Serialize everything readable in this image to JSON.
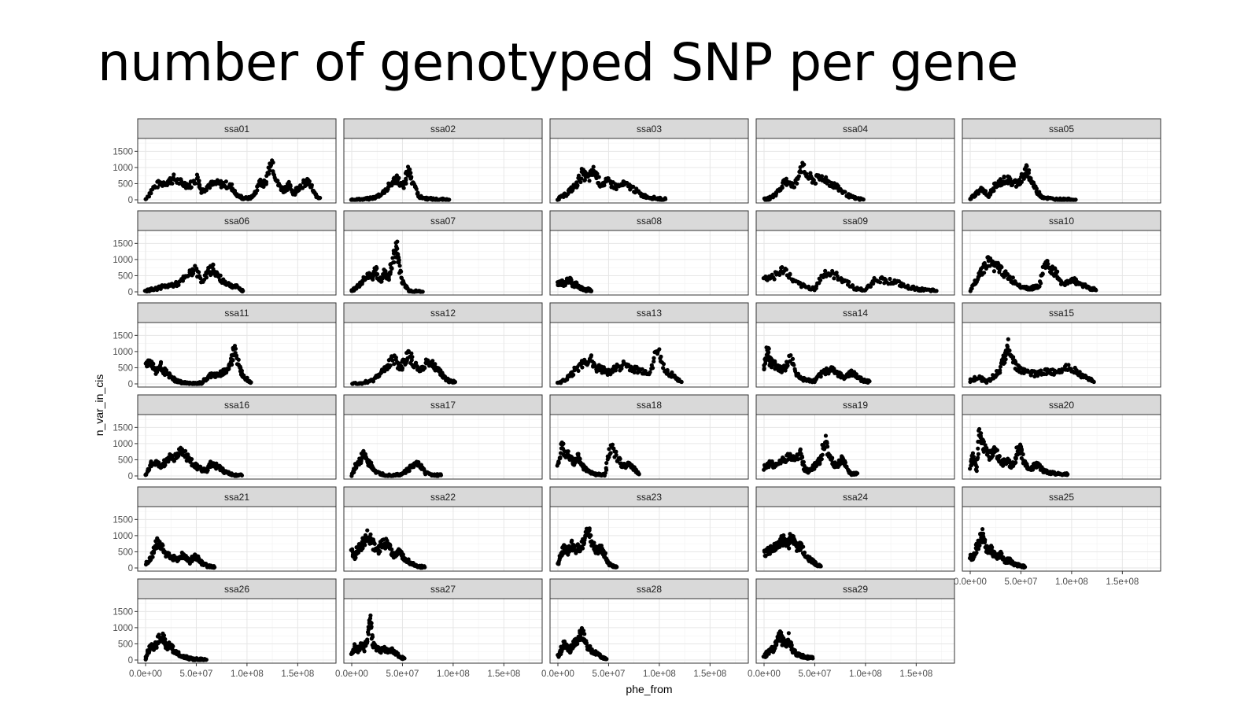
{
  "slide": {
    "title": "number of genotyped SNP per gene"
  },
  "chart_data": {
    "type": "scatter",
    "facet_layout": {
      "columns": 5,
      "rows": 6
    },
    "xlabel": "phe_from",
    "ylabel": "n_var_in_cis",
    "xlim": [
      0,
      180000000
    ],
    "ylim": [
      0,
      1800
    ],
    "x_ticks": [
      0,
      50000000,
      100000000,
      150000000
    ],
    "x_tick_labels": [
      "0.0e+00",
      "5.0e+07",
      "1.0e+08",
      "1.5e+08"
    ],
    "y_ticks": [
      0,
      500,
      1000,
      1500
    ],
    "y_tick_labels": [
      "0",
      "500",
      "1000",
      "1500"
    ],
    "grid": true,
    "point_color": "#000000",
    "strip_fill": "#d9d9d9",
    "facets": [
      {
        "name": "ssa01",
        "x": [
          0,
          10,
          20,
          28,
          36,
          44,
          52,
          55,
          62,
          70,
          78,
          85,
          90,
          96,
          103,
          108,
          113,
          118,
          124,
          130,
          136,
          141,
          146,
          150,
          156,
          161,
          167,
          172
        ],
        "y": [
          20,
          450,
          550,
          650,
          500,
          450,
          700,
          250,
          450,
          500,
          480,
          400,
          150,
          50,
          50,
          200,
          600,
          450,
          1300,
          500,
          300,
          450,
          200,
          350,
          500,
          550,
          150,
          60
        ]
      },
      {
        "name": "ssa02",
        "x": [
          0,
          8,
          16,
          24,
          32,
          38,
          44,
          50,
          52,
          56,
          60,
          66,
          72,
          80,
          88,
          96
        ],
        "y": [
          5,
          10,
          30,
          80,
          250,
          450,
          700,
          400,
          500,
          950,
          600,
          100,
          50,
          20,
          10,
          5
        ]
      },
      {
        "name": "ssa03",
        "x": [
          0,
          6,
          12,
          18,
          24,
          30,
          36,
          42,
          50,
          58,
          66,
          74,
          82,
          90,
          98,
          106
        ],
        "y": [
          30,
          120,
          300,
          450,
          800,
          650,
          900,
          500,
          550,
          400,
          480,
          350,
          150,
          80,
          40,
          20
        ]
      },
      {
        "name": "ssa04",
        "x": [
          0,
          6,
          12,
          18,
          24,
          30,
          36,
          44,
          50,
          58,
          66,
          74,
          82,
          90,
          98
        ],
        "y": [
          10,
          50,
          200,
          450,
          600,
          400,
          1050,
          700,
          600,
          700,
          500,
          350,
          150,
          40,
          10
        ]
      },
      {
        "name": "ssa05",
        "x": [
          0,
          6,
          12,
          18,
          24,
          30,
          36,
          42,
          48,
          52,
          56,
          60,
          66,
          72,
          80,
          88,
          96,
          104
        ],
        "y": [
          20,
          200,
          350,
          100,
          400,
          550,
          650,
          500,
          550,
          700,
          950,
          600,
          250,
          80,
          30,
          15,
          10,
          5
        ]
      },
      {
        "name": "ssa06",
        "x": [
          0,
          8,
          16,
          24,
          32,
          40,
          48,
          56,
          62,
          66,
          72,
          78,
          84,
          90,
          96
        ],
        "y": [
          20,
          80,
          150,
          200,
          250,
          450,
          700,
          350,
          600,
          750,
          450,
          300,
          200,
          150,
          30
        ]
      },
      {
        "name": "ssa07",
        "x": [
          0,
          5,
          10,
          15,
          20,
          24,
          28,
          32,
          36,
          40,
          44,
          46,
          50,
          56,
          62,
          70
        ],
        "y": [
          30,
          150,
          300,
          550,
          400,
          700,
          300,
          600,
          400,
          900,
          1400,
          1000,
          300,
          50,
          20,
          5
        ]
      },
      {
        "name": "ssa08",
        "x": [
          0,
          3,
          6,
          9,
          12,
          15,
          18,
          21,
          24,
          27,
          30,
          33
        ],
        "y": [
          250,
          300,
          220,
          350,
          400,
          200,
          250,
          150,
          100,
          50,
          80,
          30
        ]
      },
      {
        "name": "ssa09",
        "x": [
          0,
          10,
          20,
          30,
          40,
          50,
          60,
          70,
          80,
          90,
          100,
          110,
          120,
          130,
          140,
          150,
          160,
          170
        ],
        "y": [
          400,
          500,
          700,
          300,
          150,
          100,
          600,
          500,
          350,
          100,
          50,
          400,
          350,
          300,
          150,
          100,
          50,
          30
        ]
      },
      {
        "name": "ssa10",
        "x": [
          0,
          6,
          12,
          18,
          24,
          30,
          36,
          44,
          52,
          60,
          68,
          74,
          80,
          86,
          92,
          100,
          108,
          116,
          124
        ],
        "y": [
          20,
          400,
          700,
          950,
          800,
          700,
          500,
          300,
          150,
          100,
          200,
          900,
          700,
          500,
          200,
          400,
          250,
          150,
          50
        ]
      },
      {
        "name": "ssa11",
        "x": [
          0,
          5,
          10,
          15,
          20,
          25,
          30,
          35,
          40,
          45,
          50,
          55,
          60,
          65,
          70,
          75,
          80,
          85,
          88,
          92,
          96,
          100,
          104
        ],
        "y": [
          600,
          700,
          400,
          550,
          350,
          200,
          100,
          50,
          20,
          10,
          5,
          30,
          150,
          300,
          250,
          350,
          400,
          700,
          1200,
          500,
          300,
          150,
          50
        ]
      },
      {
        "name": "ssa12",
        "x": [
          0,
          10,
          20,
          28,
          36,
          42,
          48,
          52,
          56,
          62,
          68,
          74,
          80,
          86,
          90,
          96,
          102
        ],
        "y": [
          10,
          30,
          100,
          300,
          600,
          800,
          500,
          700,
          900,
          600,
          400,
          700,
          600,
          400,
          250,
          80,
          60
        ]
      },
      {
        "name": "ssa13",
        "x": [
          0,
          8,
          16,
          24,
          32,
          38,
          44,
          50,
          58,
          66,
          74,
          82,
          90,
          98,
          106,
          114,
          122
        ],
        "y": [
          20,
          150,
          400,
          600,
          800,
          500,
          450,
          350,
          500,
          600,
          450,
          400,
          350,
          1050,
          400,
          250,
          60
        ]
      },
      {
        "name": "ssa14",
        "x": [
          0,
          3,
          6,
          9,
          12,
          16,
          20,
          26,
          32,
          38,
          44,
          50,
          56,
          62,
          68,
          74,
          80,
          86,
          92,
          98,
          104
        ],
        "y": [
          400,
          1100,
          700,
          600,
          550,
          450,
          500,
          800,
          300,
          150,
          100,
          80,
          300,
          400,
          450,
          300,
          200,
          350,
          200,
          100,
          80
        ]
      },
      {
        "name": "ssa15",
        "x": [
          0,
          8,
          16,
          24,
          30,
          34,
          38,
          44,
          50,
          58,
          66,
          74,
          82,
          90,
          98,
          106,
          114,
          122
        ],
        "y": [
          100,
          200,
          80,
          250,
          500,
          850,
          1200,
          600,
          400,
          350,
          300,
          400,
          350,
          450,
          550,
          350,
          200,
          60
        ]
      },
      {
        "name": "ssa16",
        "x": [
          0,
          5,
          10,
          15,
          20,
          25,
          30,
          35,
          40,
          45,
          50,
          55,
          60,
          65,
          70,
          75,
          80,
          85,
          90,
          95
        ],
        "y": [
          30,
          350,
          400,
          300,
          450,
          600,
          550,
          800,
          600,
          450,
          300,
          200,
          150,
          400,
          300,
          200,
          100,
          50,
          20,
          15
        ]
      },
      {
        "name": "ssa17",
        "x": [
          0,
          4,
          8,
          12,
          16,
          20,
          24,
          30,
          36,
          42,
          48,
          54,
          60,
          66,
          72,
          80,
          88
        ],
        "y": [
          20,
          300,
          450,
          700,
          400,
          300,
          100,
          50,
          20,
          30,
          50,
          150,
          300,
          400,
          100,
          30,
          20
        ]
      },
      {
        "name": "ssa18",
        "x": [
          0,
          4,
          8,
          12,
          16,
          20,
          24,
          28,
          34,
          40,
          46,
          52,
          58,
          64,
          70,
          76,
          80
        ],
        "y": [
          300,
          900,
          700,
          550,
          400,
          600,
          300,
          200,
          80,
          40,
          30,
          900,
          600,
          300,
          400,
          200,
          50
        ]
      },
      {
        "name": "ssa19",
        "x": [
          0,
          6,
          12,
          18,
          24,
          30,
          36,
          40,
          44,
          48,
          52,
          56,
          60,
          64,
          68,
          72,
          76,
          80,
          84,
          88,
          92
        ],
        "y": [
          250,
          400,
          300,
          500,
          600,
          550,
          700,
          200,
          150,
          250,
          400,
          500,
          1100,
          650,
          400,
          300,
          500,
          350,
          100,
          50,
          80
        ]
      },
      {
        "name": "ssa20",
        "x": [
          0,
          3,
          6,
          9,
          12,
          16,
          20,
          24,
          28,
          32,
          36,
          40,
          44,
          48,
          52,
          56,
          60,
          64,
          68,
          72,
          78,
          84,
          90,
          96
        ],
        "y": [
          300,
          600,
          200,
          1300,
          1000,
          800,
          600,
          900,
          550,
          400,
          500,
          300,
          450,
          1000,
          500,
          300,
          200,
          350,
          300,
          150,
          100,
          80,
          60,
          50
        ]
      },
      {
        "name": "ssa21",
        "x": [
          0,
          4,
          8,
          12,
          16,
          20,
          24,
          28,
          32,
          36,
          40,
          44,
          48,
          52,
          56,
          62,
          68
        ],
        "y": [
          150,
          250,
          500,
          850,
          700,
          400,
          350,
          300,
          250,
          400,
          300,
          200,
          350,
          300,
          150,
          50,
          20
        ]
      },
      {
        "name": "ssa22",
        "x": [
          0,
          3,
          6,
          10,
          14,
          18,
          22,
          26,
          30,
          34,
          38,
          42,
          46,
          50,
          54,
          58,
          62,
          66,
          72
        ],
        "y": [
          500,
          350,
          600,
          700,
          1000,
          900,
          700,
          500,
          800,
          750,
          600,
          400,
          500,
          350,
          250,
          150,
          100,
          50,
          20
        ]
      },
      {
        "name": "ssa23",
        "x": [
          0,
          3,
          6,
          10,
          14,
          18,
          22,
          26,
          30,
          34,
          38,
          42,
          46,
          50,
          54,
          58
        ],
        "y": [
          100,
          400,
          600,
          500,
          700,
          550,
          650,
          800,
          1200,
          700,
          500,
          600,
          400,
          150,
          50,
          30
        ]
      },
      {
        "name": "ssa24",
        "x": [
          0,
          4,
          8,
          12,
          16,
          20,
          24,
          28,
          32,
          36,
          40,
          44,
          48,
          52,
          56
        ],
        "y": [
          450,
          500,
          600,
          700,
          800,
          900,
          750,
          1000,
          600,
          700,
          400,
          300,
          200,
          100,
          50
        ]
      },
      {
        "name": "ssa25",
        "x": [
          0,
          3,
          6,
          9,
          12,
          15,
          18,
          21,
          24,
          27,
          30,
          34,
          38,
          42,
          46,
          50,
          54
        ],
        "y": [
          350,
          300,
          600,
          800,
          1050,
          700,
          500,
          600,
          400,
          300,
          450,
          200,
          250,
          150,
          100,
          60,
          30
        ]
      },
      {
        "name": "ssa26",
        "x": [
          0,
          3,
          6,
          9,
          12,
          15,
          18,
          21,
          24,
          28,
          32,
          36,
          40,
          44,
          48,
          52,
          56,
          60
        ],
        "y": [
          20,
          300,
          450,
          400,
          600,
          700,
          650,
          400,
          500,
          300,
          200,
          100,
          80,
          50,
          30,
          20,
          15,
          10
        ]
      },
      {
        "name": "ssa27",
        "x": [
          0,
          3,
          6,
          9,
          12,
          15,
          18,
          21,
          24,
          28,
          32,
          36,
          40,
          44,
          48,
          52
        ],
        "y": [
          200,
          400,
          300,
          450,
          350,
          600,
          1300,
          500,
          400,
          300,
          350,
          250,
          300,
          200,
          100,
          50
        ]
      },
      {
        "name": "ssa28",
        "x": [
          0,
          3,
          6,
          9,
          12,
          15,
          18,
          21,
          24,
          28,
          32,
          36,
          40,
          44,
          48
        ],
        "y": [
          100,
          300,
          500,
          400,
          300,
          450,
          600,
          700,
          850,
          500,
          300,
          250,
          150,
          80,
          30
        ]
      },
      {
        "name": "ssa29",
        "x": [
          0,
          3,
          6,
          9,
          12,
          15,
          18,
          21,
          24,
          28,
          32,
          36,
          40,
          44,
          48
        ],
        "y": [
          100,
          200,
          350,
          300,
          500,
          850,
          600,
          400,
          700,
          300,
          200,
          150,
          100,
          80,
          50
        ]
      }
    ]
  }
}
